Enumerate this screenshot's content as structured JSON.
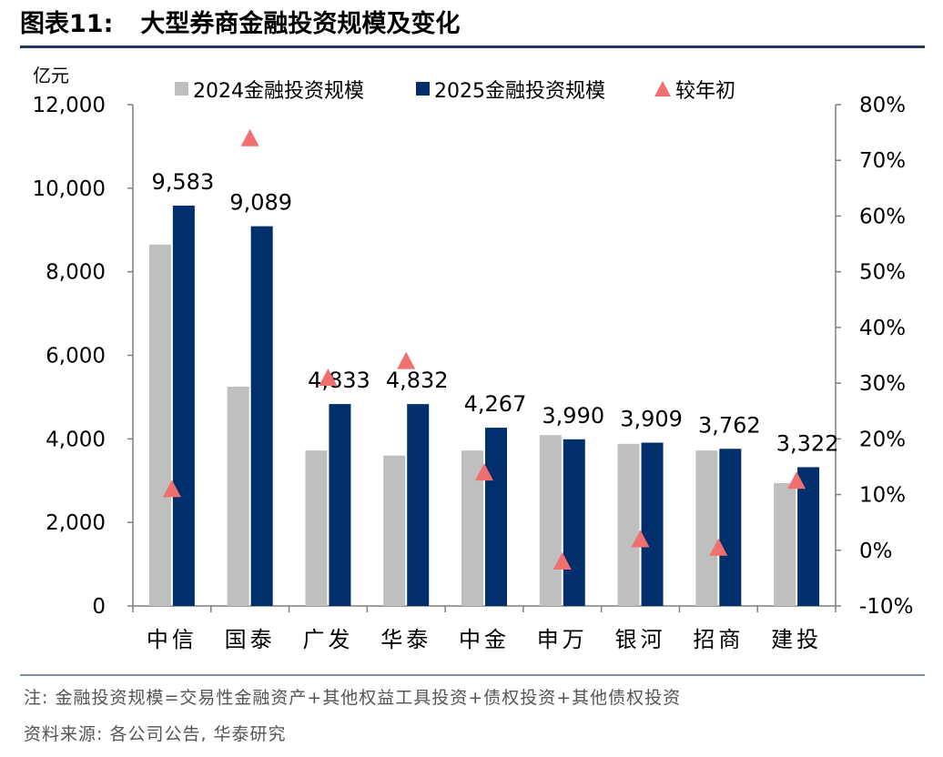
{
  "figure": {
    "label": "图表11:",
    "title": "大型券商金融投资规模及变化",
    "note": "注: 金融投资规模=交易性金融资产+其他权益工具投资+债权投资+其他债权投资",
    "source": "资料来源: 各公司公告, 华泰研究"
  },
  "colors": {
    "series_2024": "#bfbfbf",
    "series_2025": "#002f6c",
    "triangle": "#f07070",
    "axis": "#7f7f7f",
    "rule": "#1f3864"
  },
  "chart_data": {
    "type": "bar",
    "title": "大型券商金融投资规模及变化",
    "ylabel": "亿元",
    "ylim": [
      0,
      12000
    ],
    "y_ticks": [
      "0",
      "2,000",
      "4,000",
      "6,000",
      "8,000",
      "10,000",
      "12,000"
    ],
    "y2lim": [
      -10,
      80
    ],
    "y2_ticks": [
      "-10%",
      "0%",
      "10%",
      "20%",
      "30%",
      "40%",
      "50%",
      "60%",
      "70%",
      "80%"
    ],
    "legend_position": "top",
    "categories": [
      "中信",
      "国泰",
      "广发",
      "华泰",
      "中金",
      "申万",
      "银河",
      "招商",
      "建投"
    ],
    "series": [
      {
        "name": "2024金融投资规模",
        "values": [
          8650,
          5250,
          3720,
          3600,
          3720,
          4090,
          3880,
          3720,
          2940
        ]
      },
      {
        "name": "2025金融投资规模",
        "values": [
          9583,
          9089,
          4833,
          4832,
          4267,
          3990,
          3909,
          3762,
          3322
        ],
        "labels": [
          "9,583",
          "9,089",
          "4,833",
          "4,832",
          "4,267",
          "3,990",
          "3,909",
          "3,762",
          "3,322"
        ]
      },
      {
        "name": "较年初",
        "axis": "right",
        "values": [
          11,
          74,
          31,
          34,
          14,
          -2,
          2,
          0.5,
          12.5
        ]
      }
    ]
  }
}
